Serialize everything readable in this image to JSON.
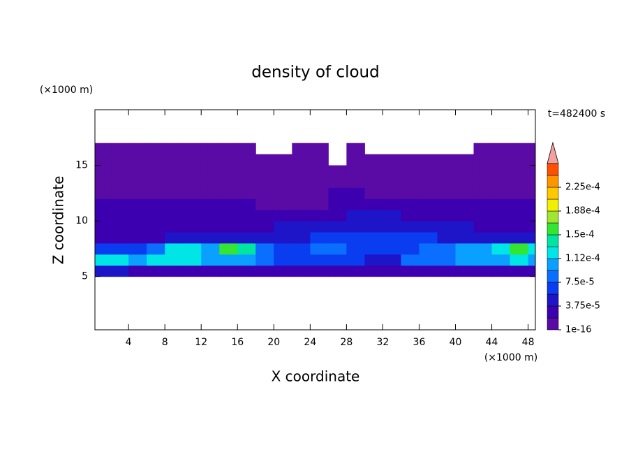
{
  "chart_data": {
    "type": "contour",
    "title": "density of cloud",
    "x_label": "X coordinate",
    "y_label": "Z coordinate",
    "x_unit": "(×1000 m)",
    "y_unit": "(×1000 m)",
    "annotation": "t=482400 s",
    "xlim": [
      0.3,
      48.8
    ],
    "ylim": [
      0.2,
      20
    ],
    "xticks": [
      4,
      8,
      12,
      16,
      20,
      24,
      28,
      32,
      36,
      40,
      44,
      48
    ],
    "yticks": [
      5,
      10,
      15
    ],
    "x_edges": [
      0,
      2,
      4,
      6,
      8,
      10,
      12,
      14,
      16,
      18,
      20,
      22,
      24,
      26,
      28,
      30,
      32,
      34,
      36,
      38,
      40,
      42,
      44,
      46,
      48,
      50
    ],
    "y_edges": [
      5,
      6,
      7,
      8,
      9,
      10,
      11,
      12,
      13,
      14,
      15,
      16,
      17
    ],
    "z": [
      [
        4.5e-05,
        4.5e-05,
        2.5e-05,
        2.5e-05,
        2.5e-05,
        2.5e-05,
        2.5e-05,
        2.5e-05,
        2.5e-05,
        2.5e-05,
        2.5e-05,
        2.5e-05,
        2.5e-05,
        2.5e-05,
        2.5e-05,
        2.5e-05,
        2.5e-05,
        2.5e-05,
        2.5e-05,
        2.5e-05,
        2.5e-05,
        2.5e-05,
        2.5e-05,
        2.5e-05,
        2.5e-05
      ],
      [
        0.000125,
        0.000125,
        0.000105,
        0.000125,
        0.000125,
        0.000125,
        0.000105,
        0.000105,
        0.000105,
        8.5e-05,
        6.5e-05,
        6.5e-05,
        6.5e-05,
        6.5e-05,
        6.5e-05,
        4.5e-05,
        4.5e-05,
        8.5e-05,
        8.5e-05,
        8.5e-05,
        0.000105,
        0.000105,
        0.000105,
        0.000125,
        0.000105
      ],
      [
        6.5e-05,
        6.5e-05,
        6.5e-05,
        8.5e-05,
        0.000125,
        0.000125,
        0.000105,
        0.00016,
        0.00014,
        8.5e-05,
        6.5e-05,
        6.5e-05,
        8.5e-05,
        8.5e-05,
        6.5e-05,
        6.5e-05,
        6.5e-05,
        6.5e-05,
        8.5e-05,
        8.5e-05,
        0.000105,
        0.000105,
        0.000125,
        0.00016,
        0.000125
      ],
      [
        2.5e-05,
        2.5e-05,
        2.5e-05,
        2.5e-05,
        4.5e-05,
        4.5e-05,
        4.5e-05,
        4.5e-05,
        4.5e-05,
        4.5e-05,
        4.5e-05,
        4.5e-05,
        6.5e-05,
        6.5e-05,
        6.5e-05,
        6.5e-05,
        6.5e-05,
        6.5e-05,
        6.5e-05,
        4.5e-05,
        4.5e-05,
        4.5e-05,
        4.5e-05,
        4.5e-05,
        4.5e-05
      ],
      [
        2.5e-05,
        2.5e-05,
        2.5e-05,
        2.5e-05,
        2.5e-05,
        2.5e-05,
        2.5e-05,
        2.5e-05,
        2.5e-05,
        2.5e-05,
        4.5e-05,
        4.5e-05,
        4.5e-05,
        4.5e-05,
        4.5e-05,
        4.5e-05,
        4.5e-05,
        4.5e-05,
        4.5e-05,
        4.5e-05,
        4.5e-05,
        2.5e-05,
        2.5e-05,
        2.5e-05,
        2.5e-05
      ],
      [
        2.5e-05,
        2.5e-05,
        2.5e-05,
        2.5e-05,
        2.5e-05,
        2.5e-05,
        2.5e-05,
        2.5e-05,
        2.5e-05,
        2.5e-05,
        2.5e-05,
        2.5e-05,
        2.5e-05,
        2.5e-05,
        4.5e-05,
        4.5e-05,
        4.5e-05,
        2.5e-05,
        2.5e-05,
        2.5e-05,
        2.5e-05,
        2.5e-05,
        2.5e-05,
        2.5e-05,
        2.5e-05
      ],
      [
        2.5e-05,
        2.5e-05,
        2.5e-05,
        2.5e-05,
        2.5e-05,
        2.5e-05,
        2.5e-05,
        2.5e-05,
        2.5e-05,
        1e-05,
        1e-05,
        1e-05,
        1e-05,
        2.5e-05,
        2.5e-05,
        2.5e-05,
        2.5e-05,
        2.5e-05,
        2.5e-05,
        2.5e-05,
        2.5e-05,
        2.5e-05,
        2.5e-05,
        2.5e-05,
        2.5e-05
      ],
      [
        1e-05,
        1e-05,
        1e-05,
        1e-05,
        1e-05,
        1e-05,
        1e-05,
        1e-05,
        1e-05,
        1e-05,
        1e-05,
        1e-05,
        1e-05,
        2.5e-05,
        2.5e-05,
        1e-05,
        1e-05,
        1e-05,
        1e-05,
        1e-05,
        1e-05,
        1e-05,
        1e-05,
        1e-05,
        1e-05
      ],
      [
        1e-05,
        1e-05,
        1e-05,
        1e-05,
        1e-05,
        1e-05,
        1e-05,
        1e-05,
        1e-05,
        1e-05,
        1e-05,
        1e-05,
        1e-05,
        1e-05,
        1e-05,
        1e-05,
        1e-05,
        1e-05,
        1e-05,
        1e-05,
        1e-05,
        1e-05,
        1e-05,
        1e-05,
        1e-05
      ],
      [
        1e-05,
        1e-05,
        1e-05,
        1e-05,
        1e-05,
        1e-05,
        1e-05,
        1e-05,
        1e-05,
        1e-05,
        1e-05,
        1e-05,
        1e-05,
        1e-05,
        1e-05,
        1e-05,
        1e-05,
        1e-05,
        1e-05,
        1e-05,
        1e-05,
        1e-05,
        1e-05,
        1e-05,
        1e-05
      ],
      [
        1e-05,
        1e-05,
        1e-05,
        1e-05,
        1e-05,
        1e-05,
        1e-05,
        1e-05,
        1e-05,
        1e-05,
        1e-05,
        1e-05,
        1e-05,
        null,
        1e-05,
        1e-05,
        1e-05,
        1e-05,
        1e-05,
        1e-05,
        1e-05,
        1e-05,
        1e-05,
        1e-05,
        1e-05
      ],
      [
        1e-05,
        1e-05,
        1e-05,
        1e-05,
        1e-05,
        1e-05,
        1e-05,
        1e-05,
        1e-05,
        null,
        null,
        1e-05,
        1e-05,
        null,
        1e-05,
        null,
        null,
        null,
        null,
        null,
        null,
        1e-05,
        1e-05,
        1e-05,
        1e-05
      ]
    ],
    "levels": [
      1e-16,
      1.875e-05,
      3.75e-05,
      5.625e-05,
      7.5e-05,
      9.375e-05,
      0.0001125,
      0.00013125,
      0.00015,
      0.00016875,
      0.0001875,
      0.00020625,
      0.000225,
      0.00024375,
      0.0002625
    ],
    "colors": [
      "#5a0aa5",
      "#3c00b0",
      "#1e14c8",
      "#0a3cf0",
      "#0a6eff",
      "#0aa0ff",
      "#00e6e6",
      "#00e6a0",
      "#32e632",
      "#a0e632",
      "#f0f000",
      "#ffc800",
      "#ff9600",
      "#ff5000",
      "#f5a0a0"
    ],
    "colorbar_ticks": [
      1e-16,
      {
        "value": 3.75e-05,
        "label": "3.75e-5"
      },
      {
        "value": 7.5e-05,
        "label": "7.5e-5"
      },
      {
        "value": 0.0001125,
        "label": "1.12e-4"
      },
      {
        "value": 0.00015,
        "label": "1.5e-4"
      },
      {
        "value": 0.0001875,
        "label": "1.88e-4"
      },
      {
        "value": 0.000225,
        "label": "2.25e-4"
      }
    ]
  }
}
